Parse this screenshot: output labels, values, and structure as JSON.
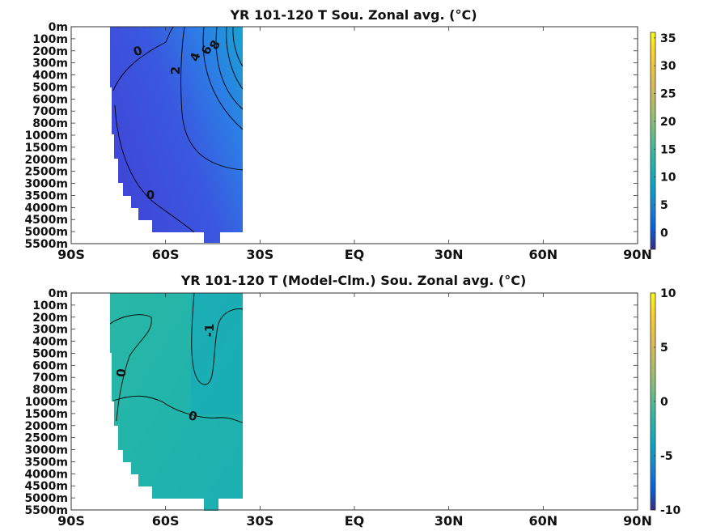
{
  "chart_data": [
    {
      "type": "heatmap",
      "subtype": "filled-contour",
      "title": "YR 101-120 T Sou. Zonal avg. (°C)",
      "xlabel": "",
      "ylabel": "",
      "x_ticks": [
        "90S",
        "60S",
        "30S",
        "EQ",
        "30N",
        "60N",
        "90N"
      ],
      "y_ticks": [
        "0m",
        "100m",
        "200m",
        "300m",
        "400m",
        "500m",
        "600m",
        "700m",
        "800m",
        "1000m",
        "1500m",
        "2000m",
        "2500m",
        "3000m",
        "3500m",
        "4000m",
        "4500m",
        "5000m",
        "5500m"
      ],
      "xlim": [
        -90,
        90
      ],
      "ylim_m": [
        5500,
        0
      ],
      "colorbar": {
        "ticks": [
          "35",
          "30",
          "25",
          "20",
          "15",
          "10",
          "5",
          "0"
        ],
        "min": -3,
        "max": 36
      },
      "contour_labels": [
        {
          "text": "0",
          "lat": -68,
          "depth": "200m"
        },
        {
          "text": "2",
          "lat": -56,
          "depth": "400m"
        },
        {
          "text": "4",
          "lat": -51,
          "depth": "300m"
        },
        {
          "text": "6",
          "lat": -48,
          "depth": "200m"
        },
        {
          "text": "8",
          "lat": -46,
          "depth": "150m"
        },
        {
          "text": "0",
          "lat": -68,
          "depth": "3000m"
        }
      ],
      "fill_color": "#3f4ddb",
      "colormap": "parula"
    },
    {
      "type": "heatmap",
      "subtype": "filled-contour",
      "title": "YR 101-120 T (Model-Clm.) Sou. Zonal avg. (°C)",
      "xlabel": "",
      "ylabel": "",
      "x_ticks": [
        "90S",
        "60S",
        "30S",
        "EQ",
        "30N",
        "60N",
        "90N"
      ],
      "y_ticks": [
        "0m",
        "100m",
        "200m",
        "300m",
        "400m",
        "500m",
        "600m",
        "700m",
        "800m",
        "1000m",
        "1500m",
        "2000m",
        "2500m",
        "3000m",
        "3500m",
        "4000m",
        "4500m",
        "5000m",
        "5500m"
      ],
      "xlim": [
        -90,
        90
      ],
      "ylim_m": [
        5500,
        0
      ],
      "colorbar": {
        "ticks": [
          "10",
          "5",
          "0",
          "-5",
          "-10"
        ],
        "min": -10,
        "max": 10
      },
      "contour_labels": [
        {
          "text": "-1",
          "lat": -43,
          "depth": "300m"
        },
        {
          "text": "0",
          "lat": -72,
          "depth": "700m"
        },
        {
          "text": "0",
          "lat": -54,
          "depth": "1500m"
        }
      ],
      "fill_color": "#1fb5a6",
      "colormap": "parula"
    }
  ]
}
